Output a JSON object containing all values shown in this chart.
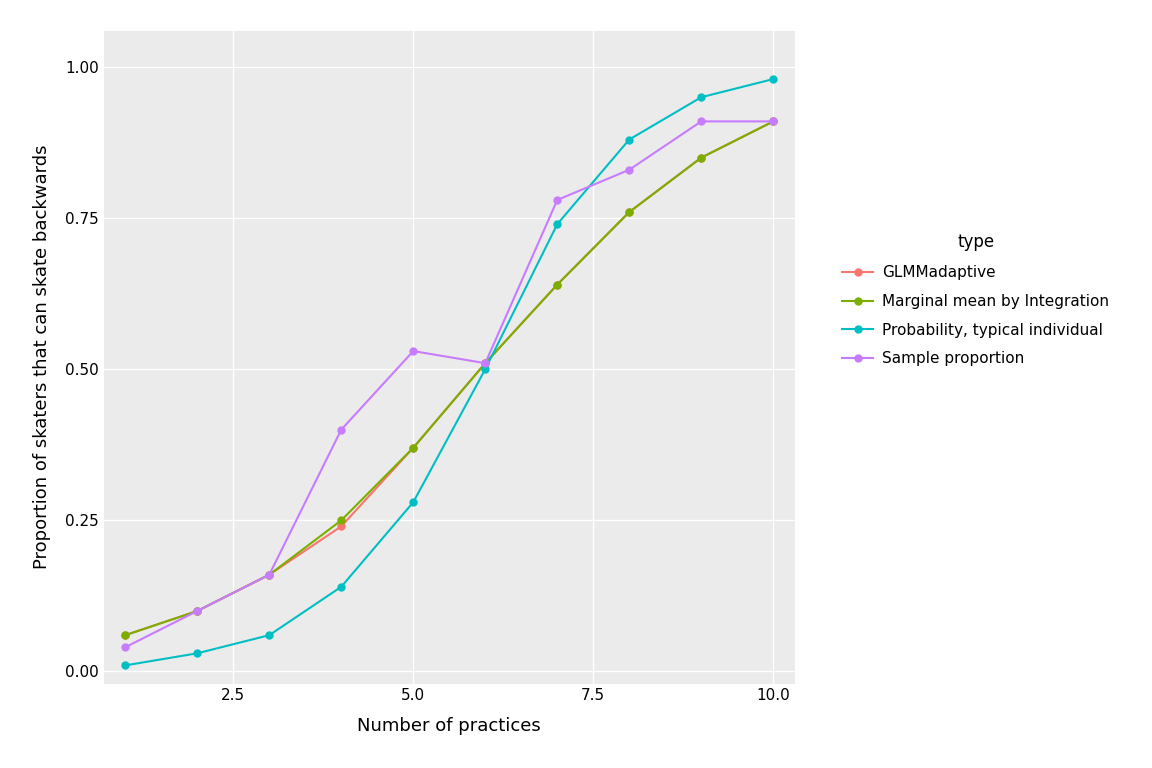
{
  "x": [
    1,
    2,
    3,
    4,
    5,
    6,
    7,
    8,
    9,
    10
  ],
  "GLMMadaptive": [
    0.06,
    0.1,
    0.16,
    0.24,
    0.37,
    0.51,
    0.64,
    0.76,
    0.85,
    0.91
  ],
  "MarginalIntegration": [
    0.06,
    0.1,
    0.16,
    0.25,
    0.37,
    0.51,
    0.64,
    0.76,
    0.85,
    0.91
  ],
  "TypicalIndividual": [
    0.01,
    0.03,
    0.06,
    0.14,
    0.28,
    0.5,
    0.74,
    0.88,
    0.95,
    0.98
  ],
  "SampleProportion": [
    0.04,
    0.1,
    0.16,
    0.4,
    0.53,
    0.51,
    0.78,
    0.83,
    0.91,
    0.91
  ],
  "color_glmm": "#F8766D",
  "color_marginal": "#7CAE00",
  "color_typical": "#00BFC4",
  "color_sample": "#C77CFF",
  "xlabel": "Number of practices",
  "ylabel": "Proportion of skaters that can skate backwards",
  "legend_title": "type",
  "legend_labels": [
    "GLMMadaptive",
    "Marginal mean by Integration",
    "Probability, typical individual",
    "Sample proportion"
  ],
  "ylim": [
    -0.02,
    1.06
  ],
  "xlim": [
    0.7,
    10.3
  ],
  "yticks": [
    0.0,
    0.25,
    0.5,
    0.75,
    1.0
  ],
  "xticks": [
    2.5,
    5.0,
    7.5,
    10.0
  ],
  "background_color": "#EBEBEB",
  "grid_color": "#FFFFFF",
  "label_fontsize": 13,
  "tick_fontsize": 11,
  "legend_fontsize": 11,
  "legend_title_fontsize": 12,
  "linewidth": 1.5,
  "markersize": 5
}
